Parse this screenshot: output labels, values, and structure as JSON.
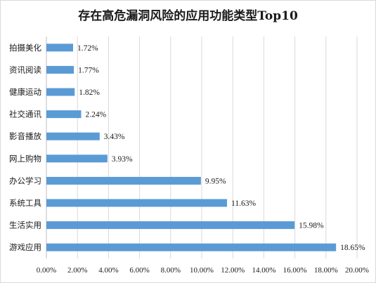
{
  "chart_data": {
    "type": "bar",
    "orientation": "horizontal",
    "title": "存在高危漏洞风险的应用功能类型Top10",
    "categories": [
      "拍摄美化",
      "资讯阅读",
      "健康运动",
      "社交通讯",
      "影音播放",
      "网上购物",
      "办公学习",
      "系统工具",
      "生活实用",
      "游戏应用"
    ],
    "values": [
      1.72,
      1.77,
      1.82,
      2.24,
      3.43,
      3.93,
      9.95,
      11.63,
      15.98,
      18.65
    ],
    "value_labels": [
      "1.72%",
      "1.77%",
      "1.82%",
      "2.24%",
      "3.43%",
      "3.93%",
      "9.95%",
      "11.63%",
      "15.98%",
      "18.65%"
    ],
    "xlim": [
      0,
      20
    ],
    "x_ticks": [
      0,
      2,
      4,
      6,
      8,
      10,
      12,
      14,
      16,
      18,
      20
    ],
    "x_tick_labels": [
      "0.00%",
      "2.00%",
      "4.00%",
      "6.00%",
      "8.00%",
      "10.00%",
      "12.00%",
      "14.00%",
      "16.00%",
      "18.00%",
      "20.00%"
    ],
    "grid": "vertical",
    "legend": "none",
    "bar_color": "#5b9bd5",
    "grid_color": "#d9d9d9"
  }
}
